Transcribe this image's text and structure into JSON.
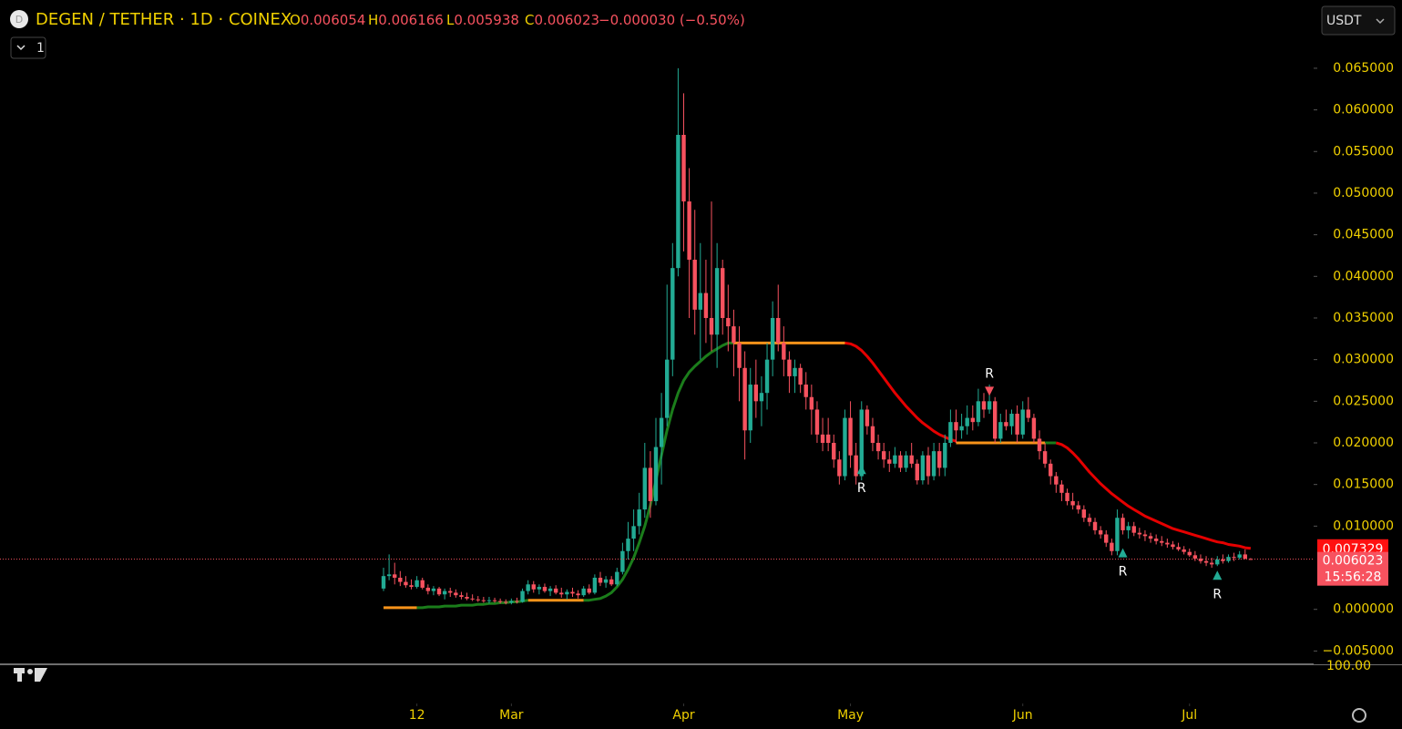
{
  "header": {
    "logo_letter": "D",
    "symbol": "DEGEN / TETHER · 1D · COINEX",
    "o_label": "O",
    "h_label": "H",
    "l_label": "L",
    "c_label": "C",
    "change": "−0.000030 (−0.50%)",
    "interval_toggle": "1",
    "currency": "USDT"
  },
  "chart_data": {
    "type": "candlestick",
    "up_color": "#22ab94",
    "down_color": "#f7525f",
    "ylim": [
      -0.0066,
      0.0732
    ],
    "xlim": [
      -69,
      167
    ],
    "yticks": [
      {
        "value": 0.065,
        "label": "0.065000"
      },
      {
        "value": 0.06,
        "label": "0.060000"
      },
      {
        "value": 0.055,
        "label": "0.055000"
      },
      {
        "value": 0.05,
        "label": "0.050000"
      },
      {
        "value": 0.045,
        "label": "0.045000"
      },
      {
        "value": 0.04,
        "label": "0.040000"
      },
      {
        "value": 0.035,
        "label": "0.035000"
      },
      {
        "value": 0.03,
        "label": "0.030000"
      },
      {
        "value": 0.025,
        "label": "0.025000"
      },
      {
        "value": 0.02,
        "label": "0.020000"
      },
      {
        "value": 0.015,
        "label": "0.015000"
      },
      {
        "value": 0.01,
        "label": "0.010000"
      },
      {
        "value": 0,
        "label": "0.000000"
      },
      {
        "value": -0.005,
        "label": "−0.005000"
      }
    ],
    "xticks": [
      {
        "value": 6,
        "label": "12"
      },
      {
        "value": 23,
        "label": "Mar"
      },
      {
        "value": 54,
        "label": "Apr"
      },
      {
        "value": 84,
        "label": "May"
      },
      {
        "value": 115,
        "label": "Jun"
      },
      {
        "value": 145,
        "label": "Jul"
      }
    ],
    "candles": [
      [
        0.0025,
        0.005,
        0.0022,
        0.004
      ],
      [
        0.004,
        0.0066,
        0.0035,
        0.0042
      ],
      [
        0.0042,
        0.0056,
        0.003,
        0.0038
      ],
      [
        0.0038,
        0.0046,
        0.0028,
        0.0033
      ],
      [
        0.0033,
        0.004,
        0.0026,
        0.0029
      ],
      [
        0.0029,
        0.0036,
        0.0024,
        0.0027
      ],
      [
        0.0027,
        0.004,
        0.0025,
        0.0035
      ],
      [
        0.0035,
        0.0038,
        0.0024,
        0.0026
      ],
      [
        0.0026,
        0.003,
        0.0018,
        0.0022
      ],
      [
        0.0022,
        0.0028,
        0.0017,
        0.0025
      ],
      [
        0.0025,
        0.0027,
        0.0016,
        0.0018
      ],
      [
        0.0018,
        0.0025,
        0.0012,
        0.0022
      ],
      [
        0.0022,
        0.0026,
        0.0015,
        0.002
      ],
      [
        0.002,
        0.0024,
        0.0014,
        0.0017
      ],
      [
        0.0017,
        0.0021,
        0.0012,
        0.0015
      ],
      [
        0.0015,
        0.002,
        0.0011,
        0.0013
      ],
      [
        0.0013,
        0.0018,
        0.001,
        0.0012
      ],
      [
        0.0012,
        0.0016,
        0.0009,
        0.0011
      ],
      [
        0.0011,
        0.0015,
        0.0008,
        0.001
      ],
      [
        0.001,
        0.0015,
        0.0007,
        0.0011
      ],
      [
        0.0011,
        0.0014,
        0.0008,
        0.001
      ],
      [
        0.001,
        0.0013,
        0.0007,
        0.0009
      ],
      [
        0.0009,
        0.0012,
        0.0006,
        0.0008
      ],
      [
        0.0008,
        0.0013,
        0.0006,
        0.001
      ],
      [
        0.001,
        0.0014,
        0.0007,
        0.0009
      ],
      [
        0.0009,
        0.0025,
        0.0008,
        0.0022
      ],
      [
        0.0022,
        0.0035,
        0.0018,
        0.003
      ],
      [
        0.003,
        0.0034,
        0.002,
        0.0024
      ],
      [
        0.0024,
        0.003,
        0.0018,
        0.0027
      ],
      [
        0.0027,
        0.0031,
        0.002,
        0.0022
      ],
      [
        0.0022,
        0.0028,
        0.0016,
        0.0025
      ],
      [
        0.0025,
        0.0029,
        0.0018,
        0.002
      ],
      [
        0.002,
        0.0026,
        0.0014,
        0.0018
      ],
      [
        0.0018,
        0.0024,
        0.0012,
        0.0021
      ],
      [
        0.0021,
        0.0026,
        0.0015,
        0.0019
      ],
      [
        0.0019,
        0.0023,
        0.0013,
        0.0017
      ],
      [
        0.0017,
        0.0028,
        0.0015,
        0.0025
      ],
      [
        0.0025,
        0.003,
        0.0018,
        0.002
      ],
      [
        0.002,
        0.0042,
        0.0018,
        0.0038
      ],
      [
        0.0038,
        0.0045,
        0.0028,
        0.0032
      ],
      [
        0.0032,
        0.004,
        0.0026,
        0.0036
      ],
      [
        0.0036,
        0.004,
        0.0028,
        0.003
      ],
      [
        0.003,
        0.005,
        0.0028,
        0.0045
      ],
      [
        0.0045,
        0.008,
        0.0042,
        0.007
      ],
      [
        0.007,
        0.0105,
        0.006,
        0.0085
      ],
      [
        0.0085,
        0.012,
        0.007,
        0.01
      ],
      [
        0.01,
        0.014,
        0.009,
        0.012
      ],
      [
        0.012,
        0.02,
        0.011,
        0.017
      ],
      [
        0.017,
        0.019,
        0.011,
        0.013
      ],
      [
        0.013,
        0.023,
        0.0125,
        0.0195
      ],
      [
        0.0195,
        0.026,
        0.015,
        0.023
      ],
      [
        0.023,
        0.039,
        0.022,
        0.03
      ],
      [
        0.03,
        0.044,
        0.028,
        0.041
      ],
      [
        0.041,
        0.065,
        0.04,
        0.057
      ],
      [
        0.057,
        0.062,
        0.043,
        0.049
      ],
      [
        0.049,
        0.053,
        0.035,
        0.042
      ],
      [
        0.042,
        0.048,
        0.033,
        0.036
      ],
      [
        0.036,
        0.044,
        0.03,
        0.038
      ],
      [
        0.038,
        0.042,
        0.032,
        0.035
      ],
      [
        0.035,
        0.049,
        0.031,
        0.033
      ],
      [
        0.033,
        0.044,
        0.029,
        0.041
      ],
      [
        0.041,
        0.042,
        0.033,
        0.035
      ],
      [
        0.035,
        0.039,
        0.031,
        0.034
      ],
      [
        0.034,
        0.036,
        0.028,
        0.032
      ],
      [
        0.032,
        0.034,
        0.025,
        0.029
      ],
      [
        0.029,
        0.031,
        0.018,
        0.0215
      ],
      [
        0.0215,
        0.029,
        0.02,
        0.027
      ],
      [
        0.027,
        0.03,
        0.023,
        0.025
      ],
      [
        0.025,
        0.028,
        0.022,
        0.026
      ],
      [
        0.026,
        0.032,
        0.024,
        0.03
      ],
      [
        0.03,
        0.037,
        0.028,
        0.035
      ],
      [
        0.035,
        0.039,
        0.031,
        0.032
      ],
      [
        0.032,
        0.034,
        0.028,
        0.03
      ],
      [
        0.03,
        0.031,
        0.026,
        0.028
      ],
      [
        0.028,
        0.03,
        0.026,
        0.029
      ],
      [
        0.029,
        0.0295,
        0.026,
        0.027
      ],
      [
        0.027,
        0.0285,
        0.024,
        0.0255
      ],
      [
        0.0255,
        0.027,
        0.021,
        0.024
      ],
      [
        0.024,
        0.025,
        0.02,
        0.021
      ],
      [
        0.021,
        0.023,
        0.019,
        0.02
      ],
      [
        0.021,
        0.023,
        0.019,
        0.02
      ],
      [
        0.02,
        0.021,
        0.017,
        0.018
      ],
      [
        0.018,
        0.019,
        0.015,
        0.016
      ],
      [
        0.016,
        0.024,
        0.0155,
        0.023
      ],
      [
        0.023,
        0.025,
        0.017,
        0.0185
      ],
      [
        0.0185,
        0.02,
        0.015,
        0.016
      ],
      [
        0.016,
        0.025,
        0.0155,
        0.024
      ],
      [
        0.024,
        0.0245,
        0.021,
        0.022
      ],
      [
        0.022,
        0.023,
        0.019,
        0.02
      ],
      [
        0.02,
        0.021,
        0.018,
        0.019
      ],
      [
        0.019,
        0.02,
        0.017,
        0.018
      ],
      [
        0.018,
        0.019,
        0.0165,
        0.0175
      ],
      [
        0.0175,
        0.0195,
        0.017,
        0.0185
      ],
      [
        0.0185,
        0.019,
        0.0165,
        0.017
      ],
      [
        0.017,
        0.019,
        0.0165,
        0.0185
      ],
      [
        0.0185,
        0.02,
        0.017,
        0.0175
      ],
      [
        0.0175,
        0.018,
        0.015,
        0.0155
      ],
      [
        0.0155,
        0.019,
        0.015,
        0.0185
      ],
      [
        0.0185,
        0.0195,
        0.015,
        0.016
      ],
      [
        0.016,
        0.02,
        0.0155,
        0.019
      ],
      [
        0.019,
        0.02,
        0.016,
        0.017
      ],
      [
        0.017,
        0.021,
        0.016,
        0.02
      ],
      [
        0.02,
        0.024,
        0.0195,
        0.0225
      ],
      [
        0.0225,
        0.024,
        0.02,
        0.0215
      ],
      [
        0.0215,
        0.0235,
        0.0205,
        0.022
      ],
      [
        0.022,
        0.0245,
        0.021,
        0.023
      ],
      [
        0.023,
        0.0245,
        0.0215,
        0.0225
      ],
      [
        0.0225,
        0.0265,
        0.022,
        0.025
      ],
      [
        0.025,
        0.026,
        0.023,
        0.024
      ],
      [
        0.024,
        0.027,
        0.0235,
        0.025
      ],
      [
        0.025,
        0.0255,
        0.02,
        0.0205
      ],
      [
        0.0205,
        0.0235,
        0.02,
        0.0225
      ],
      [
        0.0225,
        0.024,
        0.0215,
        0.022
      ],
      [
        0.022,
        0.024,
        0.021,
        0.0235
      ],
      [
        0.0235,
        0.0245,
        0.02,
        0.021
      ],
      [
        0.021,
        0.025,
        0.0205,
        0.024
      ],
      [
        0.024,
        0.0255,
        0.0225,
        0.023
      ],
      [
        0.023,
        0.0235,
        0.02,
        0.0205
      ],
      [
        0.0205,
        0.0215,
        0.018,
        0.019
      ],
      [
        0.019,
        0.02,
        0.017,
        0.0175
      ],
      [
        0.0175,
        0.018,
        0.015,
        0.016
      ],
      [
        0.016,
        0.0165,
        0.014,
        0.015
      ],
      [
        0.015,
        0.0155,
        0.013,
        0.014
      ],
      [
        0.014,
        0.0145,
        0.0125,
        0.013
      ],
      [
        0.013,
        0.014,
        0.012,
        0.0125
      ],
      [
        0.0125,
        0.013,
        0.0115,
        0.012
      ],
      [
        0.012,
        0.0125,
        0.0105,
        0.011
      ],
      [
        0.011,
        0.0115,
        0.01,
        0.0105
      ],
      [
        0.0105,
        0.011,
        0.009,
        0.0095
      ],
      [
        0.0095,
        0.01,
        0.0085,
        0.009
      ],
      [
        0.009,
        0.0095,
        0.0075,
        0.008
      ],
      [
        0.008,
        0.0085,
        0.0065,
        0.007
      ],
      [
        0.007,
        0.012,
        0.0065,
        0.011
      ],
      [
        0.011,
        0.0115,
        0.009,
        0.0095
      ],
      [
        0.0095,
        0.0105,
        0.0085,
        0.01
      ],
      [
        0.01,
        0.0105,
        0.0088,
        0.0092
      ],
      [
        0.0092,
        0.0098,
        0.0085,
        0.009
      ],
      [
        0.009,
        0.0095,
        0.0082,
        0.0088
      ],
      [
        0.0088,
        0.0092,
        0.008,
        0.0085
      ],
      [
        0.0085,
        0.009,
        0.0078,
        0.0082
      ],
      [
        0.0082,
        0.0088,
        0.0076,
        0.008
      ],
      [
        0.008,
        0.0085,
        0.0074,
        0.0078
      ],
      [
        0.0078,
        0.0082,
        0.0072,
        0.0075
      ],
      [
        0.0075,
        0.008,
        0.007,
        0.0072
      ],
      [
        0.0072,
        0.0076,
        0.0066,
        0.0069
      ],
      [
        0.0069,
        0.0073,
        0.0063,
        0.0065
      ],
      [
        0.0065,
        0.007,
        0.0058,
        0.0061
      ],
      [
        0.0061,
        0.0066,
        0.0055,
        0.0058
      ],
      [
        0.0058,
        0.0064,
        0.0052,
        0.0056
      ],
      [
        0.0056,
        0.0062,
        0.005,
        0.0054
      ],
      [
        0.0054,
        0.0064,
        0.0052,
        0.006
      ],
      [
        0.006,
        0.0066,
        0.0055,
        0.0058
      ],
      [
        0.0058,
        0.0066,
        0.0056,
        0.0063
      ],
      [
        0.0063,
        0.0068,
        0.0058,
        0.0062
      ],
      [
        0.0062,
        0.007,
        0.006,
        0.0066
      ],
      [
        0.0066,
        0.0072,
        0.006,
        0.0061
      ],
      [
        0.006054,
        0.006166,
        0.005938,
        0.006023
      ]
    ],
    "trend": [
      {
        "color": "#f7931a",
        "values": [
          0.0002,
          0.0002,
          0.0002,
          0.0002,
          0.0002,
          0.0002,
          0.0002
        ]
      },
      {
        "color": "#1b7d1b",
        "values": [
          0.0002,
          0.0002,
          0.0003,
          0.0003,
          0.0003,
          0.0004,
          0.0004,
          0.0004,
          0.0005,
          0.0005,
          0.0005,
          0.0006,
          0.0006,
          0.0007,
          0.0007,
          0.0008,
          0.0008,
          0.0009,
          0.0009,
          0.001,
          0.0011
        ]
      },
      {
        "color": "#f7931a",
        "values": [
          0.0011,
          0.0011,
          0.0011,
          0.0011,
          0.0011,
          0.0011,
          0.0011,
          0.0011,
          0.0011,
          0.0011,
          0.0011
        ]
      },
      {
        "color": "#1b7d1b",
        "values": [
          0.0011,
          0.0011,
          0.0012,
          0.0013,
          0.0016,
          0.002,
          0.0027,
          0.0036,
          0.0048,
          0.0062,
          0.008,
          0.01,
          0.0125,
          0.0155,
          0.0185,
          0.0215,
          0.024,
          0.026,
          0.0275,
          0.0285,
          0.0292,
          0.0298,
          0.0304,
          0.0309,
          0.0313,
          0.0317,
          0.032,
          0.032
        ]
      },
      {
        "color": "#f7931a",
        "values": [
          0.032,
          0.032,
          0.032,
          0.032,
          0.032,
          0.032,
          0.032,
          0.032,
          0.032,
          0.032,
          0.032,
          0.032,
          0.032,
          0.032,
          0.032,
          0.032,
          0.032,
          0.032,
          0.032,
          0.032,
          0.032
        ]
      },
      {
        "color": "#e50000",
        "values": [
          0.032,
          0.0319,
          0.0316,
          0.0311,
          0.0304,
          0.0296,
          0.0287,
          0.0278,
          0.0269,
          0.026,
          0.0252,
          0.0244,
          0.0237,
          0.023,
          0.0224,
          0.0219,
          0.0214,
          0.021,
          0.0207,
          0.0204,
          0.0202
        ]
      },
      {
        "color": "#f7931a",
        "values": [
          0.02,
          0.02,
          0.02,
          0.02,
          0.02,
          0.02,
          0.02,
          0.02,
          0.02,
          0.02,
          0.02,
          0.02,
          0.02,
          0.02,
          0.02,
          0.02,
          0.02
        ]
      },
      {
        "color": "#1b7d1b",
        "values": [
          0.02,
          0.02,
          0.02
        ]
      },
      {
        "color": "#e50000",
        "values": [
          0.02,
          0.0198,
          0.0194,
          0.0188,
          0.0181,
          0.0173,
          0.0165,
          0.0158,
          0.0151,
          0.0145,
          0.0139,
          0.0134,
          0.0129,
          0.0124,
          0.012,
          0.0116,
          0.0112,
          0.0109,
          0.0106,
          0.0103,
          0.01,
          0.0097,
          0.0095,
          0.0093,
          0.0091,
          0.0089,
          0.0087,
          0.0085,
          0.0083,
          0.0081,
          0.008,
          0.0078,
          0.0077,
          0.0076,
          0.0074,
          0.007329
        ]
      }
    ],
    "annotations": [
      {
        "label": "R",
        "index": 86,
        "price": 0.0168,
        "dir": "up",
        "color": "#22ab94"
      },
      {
        "label": "R",
        "index": 109,
        "price": 0.0262,
        "dir": "down",
        "color": "#f7525f"
      },
      {
        "label": "R",
        "index": 133,
        "price": 0.0068,
        "dir": "up",
        "color": "#22ab94"
      },
      {
        "label": "R",
        "index": 150,
        "price": 0.0041,
        "dir": "up",
        "color": "#22ab94"
      }
    ],
    "countdown": "15:56:28",
    "lower_pane_label": "100.00"
  }
}
